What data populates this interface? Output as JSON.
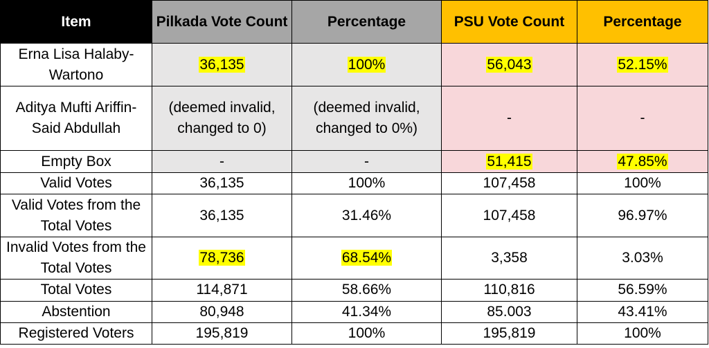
{
  "headers": {
    "item": "Item",
    "pilkada_count": "Pilkada Vote Count",
    "pilkada_pct": "Percentage",
    "psu_count": "PSU Vote Count",
    "psu_pct": "Percentage"
  },
  "rows": [
    {
      "item": "Erna Lisa Halaby-Wartono",
      "pilkada_count": "36,135",
      "pilkada_pct": "100%",
      "psu_count": "56,043",
      "psu_pct": "52.15%"
    },
    {
      "item": "Aditya Mufti Ariffin-Said Abdullah",
      "pilkada_count": "(deemed invalid, changed to 0)",
      "pilkada_pct": "(deemed invalid, changed to 0%)",
      "psu_count": "-",
      "psu_pct": "-"
    },
    {
      "item": "Empty Box",
      "pilkada_count": "-",
      "pilkada_pct": "-",
      "psu_count": "51,415",
      "psu_pct": "47.85%"
    },
    {
      "item": "Valid Votes",
      "pilkada_count": "36,135",
      "pilkada_pct": "100%",
      "psu_count": "107,458",
      "psu_pct": "100%"
    },
    {
      "item": "Valid Votes from the Total Votes",
      "pilkada_count": "36,135",
      "pilkada_pct": "31.46%",
      "psu_count": "107,458",
      "psu_pct": "96.97%"
    },
    {
      "item": "Invalid Votes from the Total Votes",
      "pilkada_count": "78,736",
      "pilkada_pct": "68.54%",
      "psu_count": "3,358",
      "psu_pct": "3.03%"
    },
    {
      "item": "Total Votes",
      "pilkada_count": "114,871",
      "pilkada_pct": "58.66%",
      "psu_count": "110,816",
      "psu_pct": "56.59%"
    },
    {
      "item": "Abstention",
      "pilkada_count": "80,948",
      "pilkada_pct": "41.34%",
      "psu_count": "85.003",
      "psu_pct": "43.41%"
    },
    {
      "item": "Registered Voters",
      "pilkada_count": "195,819",
      "pilkada_pct": "100%",
      "psu_count": "195,819",
      "psu_pct": "100%"
    }
  ],
  "colors": {
    "item_header": "#000000",
    "pilkada_header": "#a6a6a6",
    "psu_header": "#ffc000",
    "pilkada_cells": "#e7e6e6",
    "psu_cells": "#f8d7da",
    "highlight": "#ffff00"
  }
}
